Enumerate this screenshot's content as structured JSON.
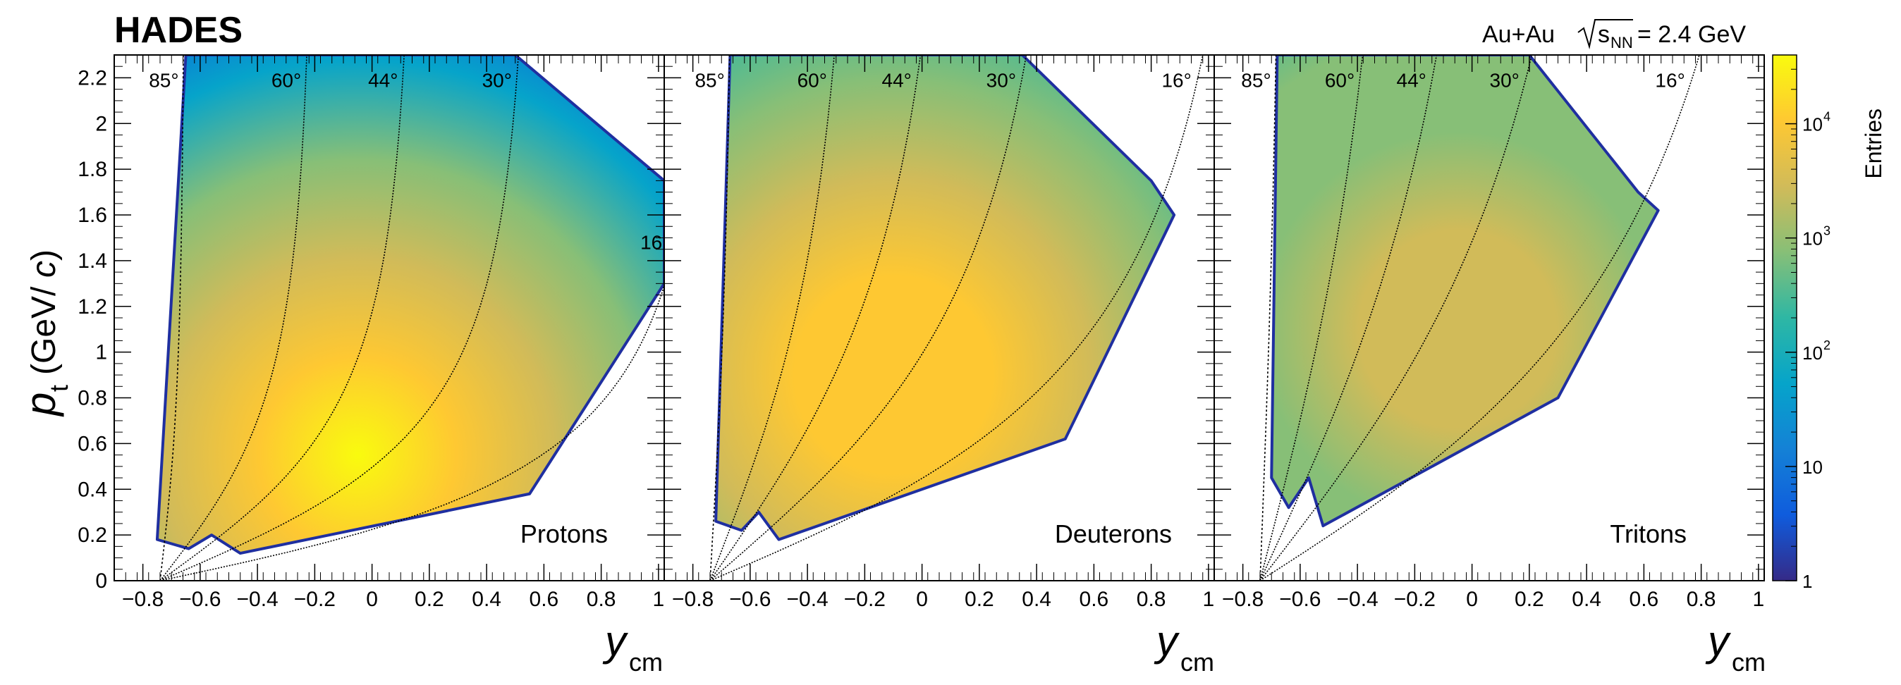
{
  "header": {
    "experiment": "HADES",
    "collision_system": "Au+Au",
    "energy_prefix": "s",
    "energy_sub": "NN",
    "energy_value": "= 2.4 GeV"
  },
  "axes": {
    "x_symbol": "y",
    "x_sub": "cm",
    "y_symbol": "p",
    "y_sub": "t",
    "y_unit_open": "(GeV/",
    "y_unit_c": "c",
    "y_unit_close": ")"
  },
  "colorbar": {
    "label": "Entries",
    "tick_labels": [
      "1",
      "10",
      "10",
      "10",
      "10"
    ],
    "tick_exps": [
      "",
      "",
      "2",
      "3",
      "4"
    ],
    "colors": [
      "#352a87",
      "#0f5cdd",
      "#1481d6",
      "#06a4ca",
      "#2eb7a4",
      "#87bf77",
      "#d1bb59",
      "#fec832",
      "#f9fb0e"
    ]
  },
  "chart_data": [
    {
      "type": "heatmap",
      "species": "Protons",
      "x_range": [
        -0.9,
        1.02
      ],
      "y_range": [
        0,
        2.3
      ],
      "x_ticks": [
        "−0.8",
        "−0.6",
        "−0.4",
        "−0.2",
        "0",
        "0.2",
        "0.4",
        "0.6",
        "0.8",
        "1"
      ],
      "y_ticks": [
        "0",
        "0.2",
        "0.4",
        "0.6",
        "0.8",
        "1",
        "1.2",
        "1.4",
        "1.6",
        "1.8",
        "2",
        "2.2"
      ],
      "z_scale": "log",
      "z_range": [
        1,
        40000
      ],
      "angle_lines": [
        {
          "label": "85°",
          "theta_deg": 85
        },
        {
          "label": "60°",
          "theta_deg": 60
        },
        {
          "label": "44°",
          "theta_deg": 44
        },
        {
          "label": "30°",
          "theta_deg": 30
        },
        {
          "label": "16°",
          "theta_deg": 16
        }
      ],
      "acceptance_corners": [
        [
          -0.75,
          0.18
        ],
        [
          -0.64,
          0.14
        ],
        [
          -0.56,
          0.2
        ],
        [
          -0.46,
          0.12
        ],
        [
          0.55,
          0.38
        ],
        [
          1.02,
          1.3
        ],
        [
          1.02,
          1.75
        ],
        [
          0.5,
          2.3
        ],
        [
          -0.65,
          2.3
        ]
      ],
      "peak": [
        -0.05,
        0.55
      ]
    },
    {
      "type": "heatmap",
      "species": "Deuterons",
      "x_range": [
        -0.9,
        1.02
      ],
      "y_range": [
        0,
        2.3
      ],
      "x_ticks": [
        "−0.8",
        "−0.6",
        "−0.4",
        "−0.2",
        "0",
        "0.2",
        "0.4",
        "0.6",
        "0.8",
        "1"
      ],
      "z_scale": "log",
      "angle_lines": [
        {
          "label": "85°",
          "theta_deg": 85
        },
        {
          "label": "60°",
          "theta_deg": 60
        },
        {
          "label": "44°",
          "theta_deg": 44
        },
        {
          "label": "30°",
          "theta_deg": 30
        },
        {
          "label": "16°",
          "theta_deg": 16
        }
      ],
      "acceptance_corners": [
        [
          -0.72,
          0.26
        ],
        [
          -0.63,
          0.22
        ],
        [
          -0.57,
          0.3
        ],
        [
          -0.5,
          0.18
        ],
        [
          0.5,
          0.62
        ],
        [
          0.88,
          1.6
        ],
        [
          0.8,
          1.75
        ],
        [
          0.35,
          2.3
        ],
        [
          -0.67,
          2.3
        ]
      ],
      "peak": [
        -0.1,
        0.9
      ]
    },
    {
      "type": "heatmap",
      "species": "Tritons",
      "x_range": [
        -0.9,
        1.02
      ],
      "y_range": [
        0,
        2.3
      ],
      "x_ticks": [
        "−0.8",
        "−0.6",
        "−0.4",
        "−0.2",
        "0",
        "0.2",
        "0.4",
        "0.6",
        "0.8",
        "1"
      ],
      "z_scale": "log",
      "angle_lines": [
        {
          "label": "85°",
          "theta_deg": 85
        },
        {
          "label": "60°",
          "theta_deg": 60
        },
        {
          "label": "44°",
          "theta_deg": 44
        },
        {
          "label": "30°",
          "theta_deg": 30
        },
        {
          "label": "16°",
          "theta_deg": 16
        }
      ],
      "acceptance_corners": [
        [
          -0.7,
          0.45
        ],
        [
          -0.64,
          0.32
        ],
        [
          -0.57,
          0.45
        ],
        [
          -0.52,
          0.24
        ],
        [
          0.3,
          0.8
        ],
        [
          0.65,
          1.62
        ],
        [
          0.58,
          1.7
        ],
        [
          0.2,
          2.3
        ],
        [
          -0.68,
          2.3
        ]
      ],
      "peak": [
        -0.05,
        1.1
      ]
    }
  ]
}
